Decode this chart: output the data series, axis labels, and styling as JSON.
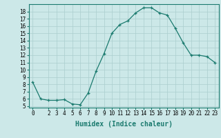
{
  "x": [
    0,
    1,
    2,
    3,
    4,
    5,
    6,
    7,
    8,
    9,
    10,
    11,
    12,
    13,
    14,
    15,
    16,
    17,
    18,
    19,
    20,
    21,
    22,
    23
  ],
  "y": [
    8.3,
    6.0,
    5.8,
    5.8,
    5.9,
    5.3,
    5.2,
    6.8,
    9.8,
    12.2,
    15.0,
    16.2,
    16.7,
    17.8,
    18.5,
    18.5,
    17.8,
    17.5,
    15.7,
    13.7,
    12.0,
    12.0,
    11.8,
    11.0
  ],
  "xlabel": "Humidex (Indice chaleur)",
  "ylim": [
    4.8,
    19.0
  ],
  "xlim": [
    -0.5,
    23.5
  ],
  "yticks": [
    5,
    6,
    7,
    8,
    9,
    10,
    11,
    12,
    13,
    14,
    15,
    16,
    17,
    18
  ],
  "xticks": [
    0,
    2,
    3,
    4,
    5,
    6,
    7,
    8,
    9,
    10,
    11,
    12,
    13,
    14,
    15,
    16,
    17,
    18,
    19,
    20,
    21,
    22,
    23
  ],
  "line_color": "#1a7a6e",
  "marker_color": "#1a7a6e",
  "bg_color": "#cce8e8",
  "grid_color": "#aacece",
  "xlabel_fontsize": 7,
  "tick_fontsize": 5.5
}
